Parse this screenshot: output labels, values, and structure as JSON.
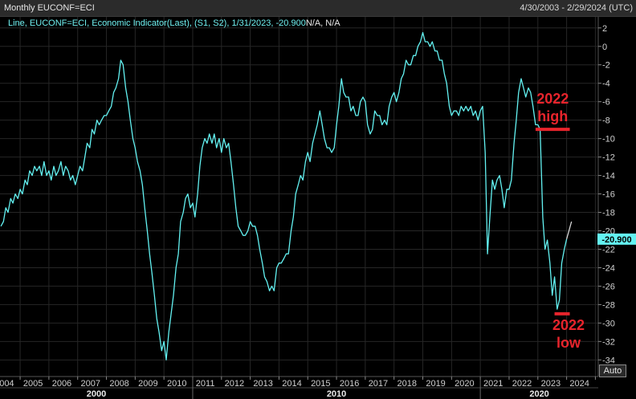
{
  "header": {
    "title": "Monthly EUCONF=ECI",
    "date_range": "4/30/2003 - 2/29/2024 (UTC)"
  },
  "legend": {
    "text": "Line, EUCONF=ECI, Economic Indicator(Last), (S1, S2), 1/31/2023, -20.900",
    "suffix": "N/A, N/A"
  },
  "controls": {
    "auto_label": "Auto"
  },
  "colors": {
    "line": "#63f2f2",
    "last_value_bg": "#63f2f2",
    "annotation": "#e8242c",
    "grid": "#262626"
  },
  "chart_data": {
    "type": "line",
    "series": [
      {
        "values": [
          [
            2003.33,
            -19.5
          ],
          [
            2003.42,
            -19.0
          ],
          [
            2003.5,
            -17.5
          ],
          [
            2003.58,
            -18.0
          ],
          [
            2003.67,
            -16.5
          ],
          [
            2003.75,
            -17.0
          ],
          [
            2003.83,
            -16.0
          ],
          [
            2003.92,
            -16.5
          ],
          [
            2004.0,
            -15.5
          ],
          [
            2004.08,
            -16.0
          ],
          [
            2004.17,
            -14.5
          ],
          [
            2004.25,
            -15.0
          ],
          [
            2004.33,
            -13.5
          ],
          [
            2004.42,
            -14.0
          ],
          [
            2004.5,
            -13.0
          ],
          [
            2004.58,
            -13.5
          ],
          [
            2004.67,
            -13.0
          ],
          [
            2004.75,
            -14.0
          ],
          [
            2004.83,
            -12.5
          ],
          [
            2004.92,
            -14.0
          ],
          [
            2005.0,
            -13.5
          ],
          [
            2005.08,
            -14.5
          ],
          [
            2005.17,
            -13.0
          ],
          [
            2005.25,
            -14.0
          ],
          [
            2005.33,
            -13.5
          ],
          [
            2005.42,
            -12.5
          ],
          [
            2005.5,
            -14.0
          ],
          [
            2005.58,
            -13.0
          ],
          [
            2005.67,
            -13.5
          ],
          [
            2005.75,
            -14.5
          ],
          [
            2005.83,
            -14.0
          ],
          [
            2005.92,
            -15.0
          ],
          [
            2006.0,
            -14.0
          ],
          [
            2006.08,
            -13.0
          ],
          [
            2006.17,
            -13.5
          ],
          [
            2006.25,
            -12.0
          ],
          [
            2006.33,
            -10.5
          ],
          [
            2006.42,
            -11.0
          ],
          [
            2006.5,
            -9.0
          ],
          [
            2006.58,
            -9.5
          ],
          [
            2006.67,
            -8.0
          ],
          [
            2006.75,
            -8.5
          ],
          [
            2006.83,
            -8.0
          ],
          [
            2006.92,
            -7.5
          ],
          [
            2007.0,
            -7.5
          ],
          [
            2007.08,
            -7.0
          ],
          [
            2007.17,
            -6.5
          ],
          [
            2007.25,
            -5.0
          ],
          [
            2007.33,
            -4.5
          ],
          [
            2007.42,
            -3.5
          ],
          [
            2007.5,
            -1.5
          ],
          [
            2007.58,
            -2.0
          ],
          [
            2007.67,
            -4.5
          ],
          [
            2007.75,
            -6.0
          ],
          [
            2007.83,
            -8.0
          ],
          [
            2007.92,
            -10.0
          ],
          [
            2008.0,
            -11.0
          ],
          [
            2008.08,
            -12.5
          ],
          [
            2008.17,
            -13.5
          ],
          [
            2008.25,
            -15.0
          ],
          [
            2008.33,
            -17.5
          ],
          [
            2008.42,
            -20.0
          ],
          [
            2008.5,
            -22.5
          ],
          [
            2008.58,
            -24.5
          ],
          [
            2008.67,
            -27.0
          ],
          [
            2008.75,
            -29.5
          ],
          [
            2008.83,
            -31.0
          ],
          [
            2008.92,
            -33.0
          ],
          [
            2009.0,
            -32.0
          ],
          [
            2009.08,
            -34.0
          ],
          [
            2009.17,
            -31.0
          ],
          [
            2009.25,
            -29.0
          ],
          [
            2009.33,
            -27.0
          ],
          [
            2009.42,
            -24.0
          ],
          [
            2009.5,
            -22.5
          ],
          [
            2009.58,
            -19.0
          ],
          [
            2009.67,
            -18.0
          ],
          [
            2009.75,
            -16.5
          ],
          [
            2009.83,
            -16.0
          ],
          [
            2009.92,
            -17.5
          ],
          [
            2010.0,
            -17.0
          ],
          [
            2010.08,
            -18.5
          ],
          [
            2010.17,
            -16.0
          ],
          [
            2010.25,
            -13.0
          ],
          [
            2010.33,
            -11.0
          ],
          [
            2010.42,
            -10.0
          ],
          [
            2010.5,
            -10.5
          ],
          [
            2010.58,
            -9.5
          ],
          [
            2010.67,
            -10.5
          ],
          [
            2010.75,
            -9.5
          ],
          [
            2010.83,
            -11.0
          ],
          [
            2010.92,
            -10.0
          ],
          [
            2011.0,
            -11.5
          ],
          [
            2011.08,
            -10.0
          ],
          [
            2011.17,
            -11.0
          ],
          [
            2011.25,
            -10.5
          ],
          [
            2011.33,
            -12.5
          ],
          [
            2011.42,
            -15.0
          ],
          [
            2011.5,
            -17.5
          ],
          [
            2011.58,
            -19.5
          ],
          [
            2011.67,
            -20.0
          ],
          [
            2011.75,
            -20.5
          ],
          [
            2011.83,
            -20.5
          ],
          [
            2011.92,
            -20.0
          ],
          [
            2012.0,
            -19.0
          ],
          [
            2012.08,
            -19.5
          ],
          [
            2012.17,
            -19.5
          ],
          [
            2012.25,
            -20.5
          ],
          [
            2012.33,
            -22.0
          ],
          [
            2012.42,
            -23.5
          ],
          [
            2012.5,
            -25.0
          ],
          [
            2012.58,
            -25.5
          ],
          [
            2012.67,
            -26.5
          ],
          [
            2012.75,
            -26.0
          ],
          [
            2012.83,
            -26.5
          ],
          [
            2012.92,
            -24.0
          ],
          [
            2013.0,
            -23.5
          ],
          [
            2013.08,
            -23.5
          ],
          [
            2013.17,
            -23.0
          ],
          [
            2013.25,
            -22.5
          ],
          [
            2013.33,
            -22.5
          ],
          [
            2013.42,
            -20.0
          ],
          [
            2013.5,
            -18.5
          ],
          [
            2013.58,
            -16.0
          ],
          [
            2013.67,
            -15.0
          ],
          [
            2013.75,
            -14.0
          ],
          [
            2013.83,
            -14.5
          ],
          [
            2013.92,
            -12.5
          ],
          [
            2014.0,
            -11.5
          ],
          [
            2014.08,
            -12.5
          ],
          [
            2014.17,
            -10.5
          ],
          [
            2014.25,
            -9.5
          ],
          [
            2014.33,
            -8.5
          ],
          [
            2014.42,
            -7.0
          ],
          [
            2014.5,
            -8.5
          ],
          [
            2014.58,
            -10.0
          ],
          [
            2014.67,
            -11.0
          ],
          [
            2014.75,
            -11.0
          ],
          [
            2014.83,
            -11.5
          ],
          [
            2014.92,
            -11.0
          ],
          [
            2015.0,
            -8.5
          ],
          [
            2015.08,
            -6.5
          ],
          [
            2015.17,
            -3.5
          ],
          [
            2015.25,
            -5.0
          ],
          [
            2015.33,
            -5.5
          ],
          [
            2015.42,
            -5.5
          ],
          [
            2015.5,
            -7.0
          ],
          [
            2015.58,
            -6.5
          ],
          [
            2015.67,
            -7.5
          ],
          [
            2015.75,
            -7.5
          ],
          [
            2015.83,
            -6.0
          ],
          [
            2015.92,
            -5.5
          ],
          [
            2016.0,
            -6.0
          ],
          [
            2016.08,
            -8.5
          ],
          [
            2016.17,
            -9.5
          ],
          [
            2016.25,
            -9.0
          ],
          [
            2016.33,
            -7.0
          ],
          [
            2016.42,
            -7.5
          ],
          [
            2016.5,
            -7.5
          ],
          [
            2016.58,
            -8.5
          ],
          [
            2016.67,
            -8.0
          ],
          [
            2016.75,
            -8.5
          ],
          [
            2016.83,
            -6.5
          ],
          [
            2016.92,
            -5.5
          ],
          [
            2017.0,
            -5.0
          ],
          [
            2017.08,
            -6.0
          ],
          [
            2017.17,
            -5.0
          ],
          [
            2017.25,
            -3.5
          ],
          [
            2017.33,
            -3.0
          ],
          [
            2017.42,
            -1.5
          ],
          [
            2017.5,
            -2.0
          ],
          [
            2017.58,
            -2.0
          ],
          [
            2017.67,
            -1.0
          ],
          [
            2017.75,
            -1.0
          ],
          [
            2017.83,
            0.0
          ],
          [
            2017.92,
            0.5
          ],
          [
            2018.0,
            1.5
          ],
          [
            2018.08,
            0.5
          ],
          [
            2018.17,
            0.5
          ],
          [
            2018.25,
            0.0
          ],
          [
            2018.33,
            0.5
          ],
          [
            2018.42,
            -0.5
          ],
          [
            2018.5,
            -0.5
          ],
          [
            2018.58,
            -1.5
          ],
          [
            2018.67,
            -1.5
          ],
          [
            2018.75,
            -3.0
          ],
          [
            2018.83,
            -4.0
          ],
          [
            2018.92,
            -6.5
          ],
          [
            2019.0,
            -7.5
          ],
          [
            2019.08,
            -7.0
          ],
          [
            2019.17,
            -7.0
          ],
          [
            2019.25,
            -7.5
          ],
          [
            2019.33,
            -6.5
          ],
          [
            2019.42,
            -7.0
          ],
          [
            2019.5,
            -6.5
          ],
          [
            2019.58,
            -7.0
          ],
          [
            2019.67,
            -6.5
          ],
          [
            2019.75,
            -7.5
          ],
          [
            2019.83,
            -7.0
          ],
          [
            2019.92,
            -8.0
          ],
          [
            2020.0,
            -7.0
          ],
          [
            2020.08,
            -6.5
          ],
          [
            2020.17,
            -11.5
          ],
          [
            2020.25,
            -22.5
          ],
          [
            2020.33,
            -18.5
          ],
          [
            2020.42,
            -14.5
          ],
          [
            2020.5,
            -15.5
          ],
          [
            2020.58,
            -14.5
          ],
          [
            2020.67,
            -14.0
          ],
          [
            2020.75,
            -15.5
          ],
          [
            2020.83,
            -17.5
          ],
          [
            2020.92,
            -15.5
          ],
          [
            2021.0,
            -15.5
          ],
          [
            2021.08,
            -14.5
          ],
          [
            2021.17,
            -10.5
          ],
          [
            2021.25,
            -8.0
          ],
          [
            2021.33,
            -5.0
          ],
          [
            2021.42,
            -3.5
          ],
          [
            2021.5,
            -4.5
          ],
          [
            2021.58,
            -5.5
          ],
          [
            2021.67,
            -4.5
          ],
          [
            2021.75,
            -5.0
          ],
          [
            2021.83,
            -6.5
          ],
          [
            2021.92,
            -8.5
          ],
          [
            2022.0,
            -8.5
          ],
          [
            2022.08,
            -9.0
          ],
          [
            2022.17,
            -18.5
          ],
          [
            2022.25,
            -22.0
          ],
          [
            2022.33,
            -21.0
          ],
          [
            2022.42,
            -23.5
          ],
          [
            2022.5,
            -27.0
          ],
          [
            2022.58,
            -25.0
          ],
          [
            2022.67,
            -28.5
          ],
          [
            2022.75,
            -27.5
          ],
          [
            2022.83,
            -23.5
          ],
          [
            2022.92,
            -22.0
          ],
          [
            2023.0,
            -20.9
          ]
        ]
      },
      {
        "values": [
          [
            2023.0,
            -20.9
          ],
          [
            2023.08,
            -20.0
          ],
          [
            2023.17,
            -19.0
          ]
        ]
      }
    ],
    "x_ticks": [
      "2004",
      "2005",
      "2006",
      "2007",
      "2008",
      "2009",
      "2010",
      "2011",
      "2012",
      "2013",
      "2014",
      "2015",
      "2016",
      "2017",
      "2018",
      "2019",
      "2020",
      "2021",
      "2022",
      "2023",
      "2024"
    ],
    "x_decades": [
      "2000",
      "2010",
      "2020"
    ],
    "y_ticks": [
      2,
      0,
      -2,
      -4,
      -6,
      -8,
      -10,
      -12,
      -14,
      -16,
      -18,
      -20,
      -22,
      -24,
      -26,
      -28,
      -30,
      -32,
      -34
    ],
    "ylim": [
      -35.8,
      3.2
    ],
    "xlim": [
      2003.3,
      2024.1
    ],
    "last_value": "-20.900",
    "annotations": [
      {
        "label": "2022 high",
        "lines": [
          "2022",
          "high"
        ],
        "value": -9.0,
        "x_from": 2021.92,
        "x_to": 2023.11
      },
      {
        "label": "2022 low",
        "lines": [
          "2022",
          "low"
        ],
        "value": -29.0,
        "x_from": 2022.58,
        "x_to": 2023.11
      }
    ]
  }
}
